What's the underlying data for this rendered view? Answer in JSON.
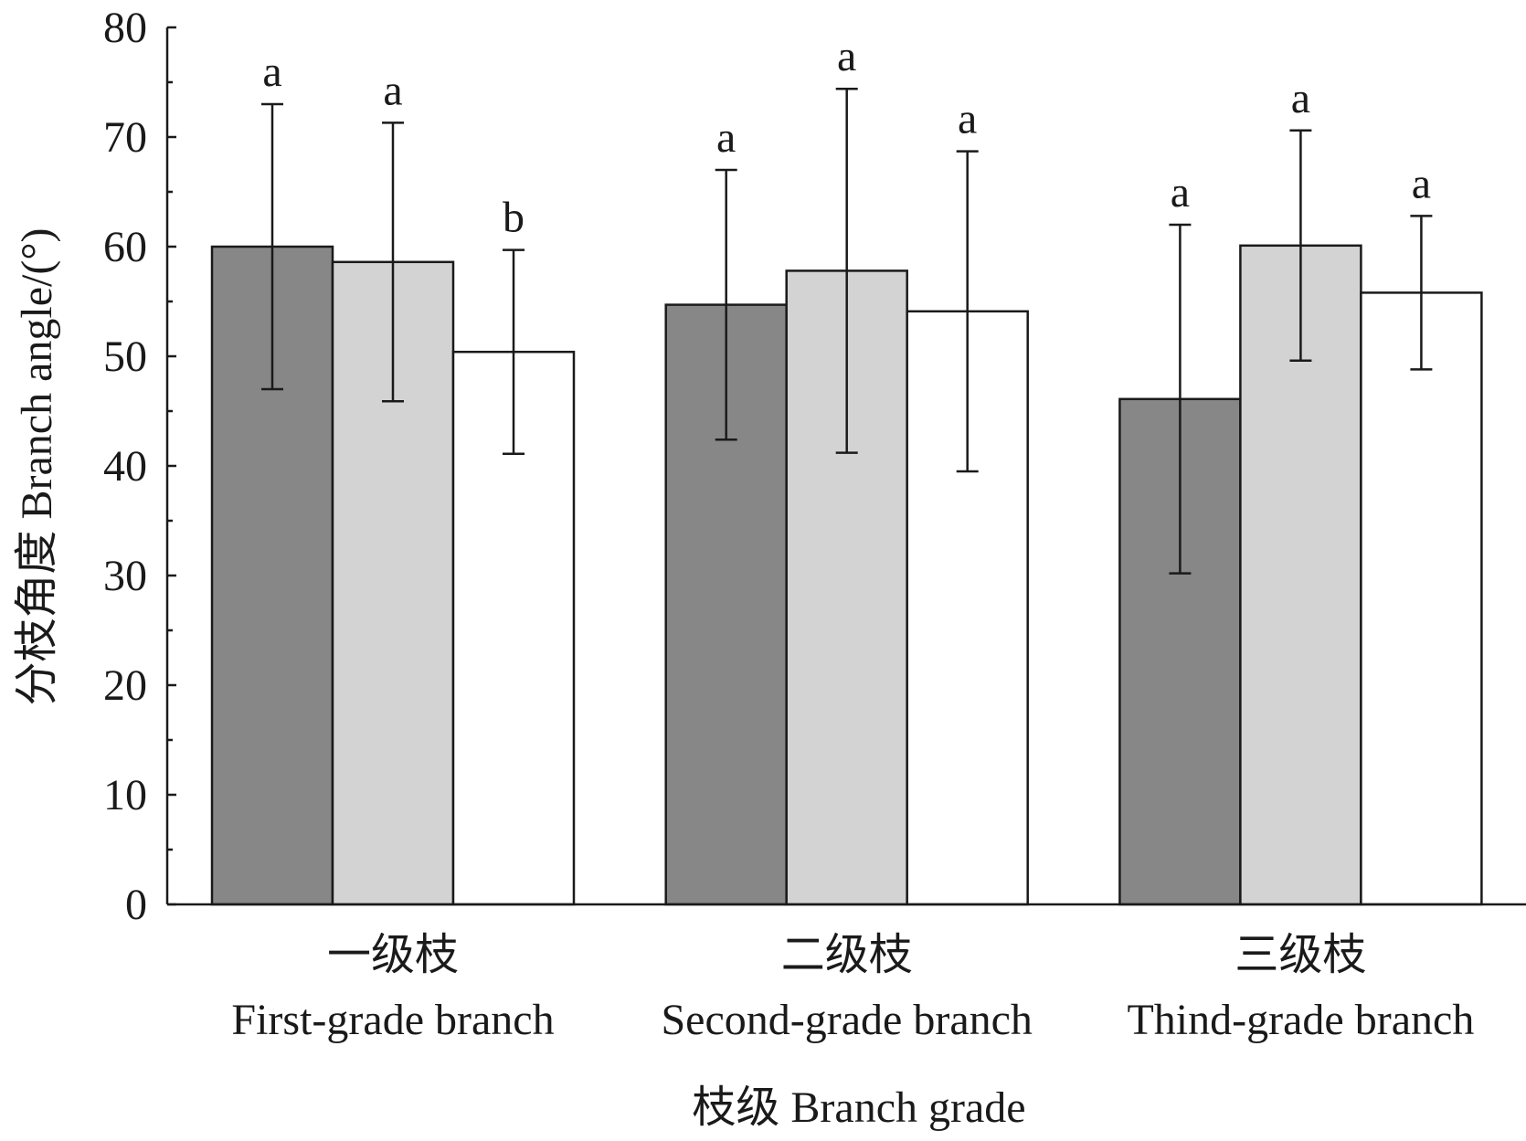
{
  "chart_data": {
    "type": "bar",
    "y_label": "分枝角度  Branch angle/(°)",
    "x_label": "枝级  Branch grade",
    "categories": [
      "一级枝",
      "二级枝",
      "三级枝"
    ],
    "categories_en": [
      "First-grade branch",
      "Second-grade branch",
      "Thind-grade branch"
    ],
    "series": [
      {
        "color": "#878787",
        "values": [
          60,
          54.7,
          46.1
        ],
        "errors": [
          13,
          12.3,
          15.9
        ],
        "labels": [
          "a",
          "a",
          "a"
        ]
      },
      {
        "color": "#d3d3d3",
        "values": [
          58.6,
          57.8,
          60.1
        ],
        "errors": [
          12.7,
          16.6,
          10.5
        ],
        "labels": [
          "a",
          "a",
          "a"
        ]
      },
      {
        "color": "#ffffff",
        "values": [
          50.4,
          54.1,
          55.8
        ],
        "errors": [
          9.3,
          14.6,
          7
        ],
        "labels": [
          "b",
          "a",
          "a"
        ]
      }
    ],
    "ylim": [
      0,
      80
    ],
    "yticks": [
      0,
      10,
      20,
      30,
      40,
      50,
      60,
      70,
      80
    ],
    "yminorticks": [
      5,
      15,
      25,
      35,
      45,
      55,
      65,
      75
    ]
  }
}
